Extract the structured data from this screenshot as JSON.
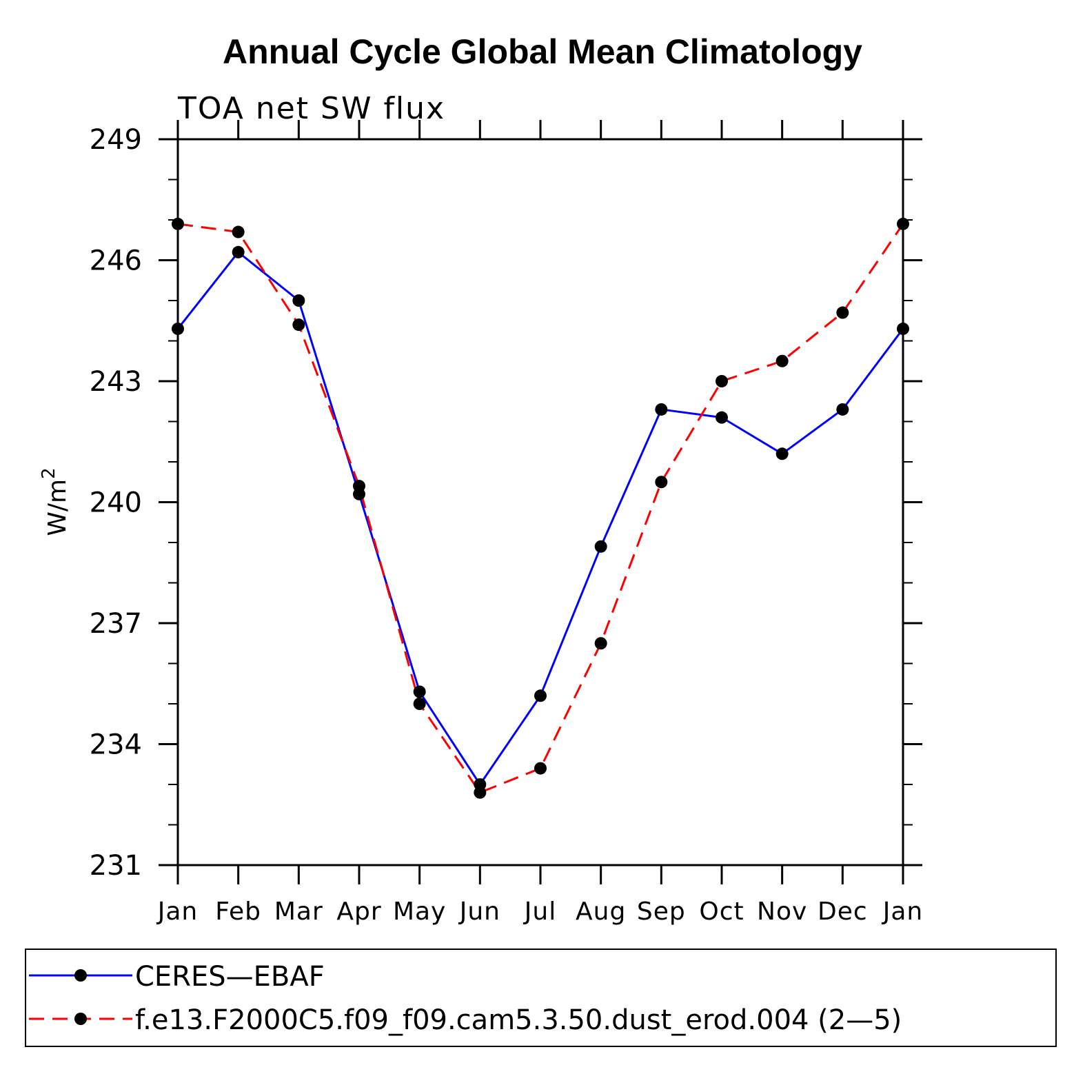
{
  "chart_data": {
    "type": "line",
    "title": "Annual Cycle Global Mean Climatology",
    "subtitle": "TOA net SW flux",
    "ylabel": "W/m",
    "ylabel_sup": "2",
    "xlabel": "",
    "categories": [
      "Jan",
      "Feb",
      "Mar",
      "Apr",
      "May",
      "Jun",
      "Jul",
      "Aug",
      "Sep",
      "Oct",
      "Nov",
      "Dec",
      "Jan"
    ],
    "ylim": [
      231,
      249
    ],
    "yticks": [
      231,
      234,
      237,
      240,
      243,
      246,
      249
    ],
    "grid": false,
    "legend_position": "bottom",
    "series": [
      {
        "name": "CERES—EBAF",
        "color": "#0000ff",
        "dash": "solid",
        "values": [
          244.3,
          246.2,
          245.0,
          240.2,
          235.3,
          233.0,
          235.2,
          238.9,
          242.3,
          242.1,
          241.2,
          242.3,
          244.3
        ]
      },
      {
        "name": "f.e13.F2000C5.f09_f09.cam5.3.50.dust_erod.004 (2—5)",
        "color": "#ff0000",
        "dash": "dashed",
        "values": [
          246.9,
          246.7,
          244.4,
          240.4,
          235.0,
          232.8,
          233.4,
          236.5,
          240.5,
          243.0,
          243.5,
          244.7,
          246.9
        ]
      }
    ]
  }
}
